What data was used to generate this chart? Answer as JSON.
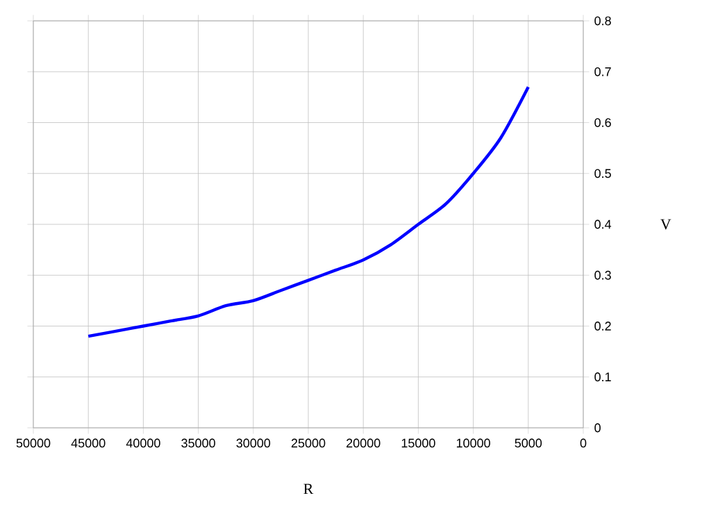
{
  "chart_data": {
    "type": "line",
    "xlabel": "R",
    "ylabel": "V",
    "x": [
      45000,
      42500,
      40000,
      37500,
      35000,
      32500,
      30000,
      27500,
      25000,
      22500,
      20000,
      17500,
      15000,
      12500,
      10000,
      7500,
      5000
    ],
    "series": [
      {
        "color": "#0000ff",
        "values": [
          0.18,
          0.19,
          0.2,
          0.21,
          0.22,
          0.24,
          0.25,
          0.27,
          0.29,
          0.31,
          0.33,
          0.36,
          0.4,
          0.44,
          0.5,
          0.57,
          0.67
        ]
      }
    ],
    "xlim": [
      50000,
      0
    ],
    "xticks": [
      50000,
      45000,
      40000,
      35000,
      30000,
      25000,
      20000,
      15000,
      10000,
      5000,
      0
    ],
    "ylim": [
      0,
      0.8
    ],
    "yticks": [
      0,
      0.1,
      0.2,
      0.3,
      0.4,
      0.5,
      0.6,
      0.7,
      0.8
    ],
    "grid": true,
    "marker": "none",
    "line_style": "solid"
  }
}
